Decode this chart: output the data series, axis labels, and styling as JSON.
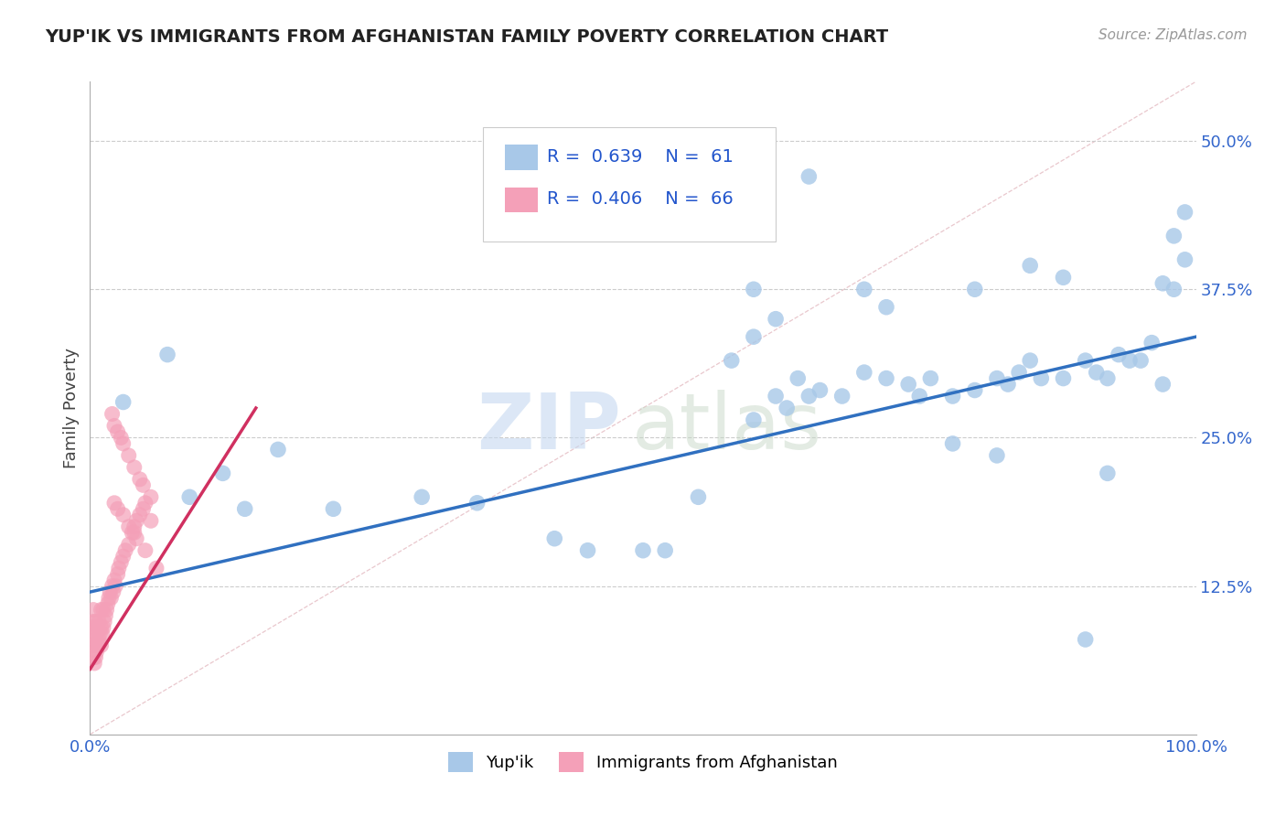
{
  "title": "YUP'IK VS IMMIGRANTS FROM AFGHANISTAN FAMILY POVERTY CORRELATION CHART",
  "source": "Source: ZipAtlas.com",
  "ylabel": "Family Poverty",
  "legend_label_1": "Yup'ik",
  "legend_label_2": "Immigrants from Afghanistan",
  "r1": 0.639,
  "n1": 61,
  "r2": 0.406,
  "n2": 66,
  "color1": "#a8c8e8",
  "color2": "#f4a0b8",
  "line_color1": "#3070c0",
  "line_color2": "#d03060",
  "xlim": [
    0.0,
    1.0
  ],
  "ylim": [
    0.0,
    0.55
  ],
  "ytick_labels": [
    "12.5%",
    "25.0%",
    "37.5%",
    "50.0%"
  ],
  "ytick_values": [
    0.125,
    0.25,
    0.375,
    0.5
  ],
  "blue_line_x0": 0.0,
  "blue_line_y0": 0.12,
  "blue_line_x1": 1.0,
  "blue_line_y1": 0.335,
  "pink_line_x0": 0.0,
  "pink_line_y0": 0.055,
  "pink_line_x1": 0.15,
  "pink_line_y1": 0.275,
  "blue_dots": [
    [
      0.03,
      0.28
    ],
    [
      0.07,
      0.32
    ],
    [
      0.09,
      0.2
    ],
    [
      0.12,
      0.22
    ],
    [
      0.14,
      0.19
    ],
    [
      0.17,
      0.24
    ],
    [
      0.22,
      0.19
    ],
    [
      0.3,
      0.2
    ],
    [
      0.35,
      0.195
    ],
    [
      0.42,
      0.165
    ],
    [
      0.45,
      0.155
    ],
    [
      0.5,
      0.155
    ],
    [
      0.52,
      0.155
    ],
    [
      0.55,
      0.2
    ],
    [
      0.58,
      0.315
    ],
    [
      0.6,
      0.335
    ],
    [
      0.6,
      0.265
    ],
    [
      0.62,
      0.285
    ],
    [
      0.63,
      0.275
    ],
    [
      0.64,
      0.3
    ],
    [
      0.65,
      0.285
    ],
    [
      0.66,
      0.29
    ],
    [
      0.68,
      0.285
    ],
    [
      0.7,
      0.305
    ],
    [
      0.72,
      0.3
    ],
    [
      0.74,
      0.295
    ],
    [
      0.75,
      0.285
    ],
    [
      0.76,
      0.3
    ],
    [
      0.78,
      0.285
    ],
    [
      0.8,
      0.29
    ],
    [
      0.82,
      0.3
    ],
    [
      0.83,
      0.295
    ],
    [
      0.84,
      0.305
    ],
    [
      0.85,
      0.315
    ],
    [
      0.86,
      0.3
    ],
    [
      0.88,
      0.3
    ],
    [
      0.9,
      0.315
    ],
    [
      0.91,
      0.305
    ],
    [
      0.92,
      0.3
    ],
    [
      0.93,
      0.32
    ],
    [
      0.94,
      0.315
    ],
    [
      0.95,
      0.315
    ],
    [
      0.96,
      0.33
    ],
    [
      0.97,
      0.38
    ],
    [
      0.97,
      0.295
    ],
    [
      0.98,
      0.42
    ],
    [
      0.98,
      0.375
    ],
    [
      0.99,
      0.44
    ],
    [
      0.99,
      0.4
    ],
    [
      0.65,
      0.47
    ],
    [
      0.7,
      0.375
    ],
    [
      0.8,
      0.375
    ],
    [
      0.85,
      0.395
    ],
    [
      0.88,
      0.385
    ],
    [
      0.9,
      0.08
    ],
    [
      0.92,
      0.22
    ],
    [
      0.6,
      0.375
    ],
    [
      0.62,
      0.35
    ],
    [
      0.72,
      0.36
    ],
    [
      0.78,
      0.245
    ],
    [
      0.82,
      0.235
    ]
  ],
  "pink_dots": [
    [
      0.003,
      0.065
    ],
    [
      0.003,
      0.075
    ],
    [
      0.003,
      0.085
    ],
    [
      0.003,
      0.095
    ],
    [
      0.003,
      0.105
    ],
    [
      0.004,
      0.06
    ],
    [
      0.004,
      0.075
    ],
    [
      0.004,
      0.09
    ],
    [
      0.005,
      0.065
    ],
    [
      0.005,
      0.08
    ],
    [
      0.005,
      0.095
    ],
    [
      0.006,
      0.07
    ],
    [
      0.006,
      0.085
    ],
    [
      0.007,
      0.075
    ],
    [
      0.007,
      0.09
    ],
    [
      0.008,
      0.08
    ],
    [
      0.008,
      0.095
    ],
    [
      0.009,
      0.085
    ],
    [
      0.01,
      0.075
    ],
    [
      0.01,
      0.09
    ],
    [
      0.01,
      0.105
    ],
    [
      0.011,
      0.085
    ],
    [
      0.012,
      0.09
    ],
    [
      0.012,
      0.105
    ],
    [
      0.013,
      0.095
    ],
    [
      0.014,
      0.1
    ],
    [
      0.015,
      0.105
    ],
    [
      0.016,
      0.11
    ],
    [
      0.017,
      0.115
    ],
    [
      0.018,
      0.12
    ],
    [
      0.019,
      0.115
    ],
    [
      0.02,
      0.125
    ],
    [
      0.021,
      0.12
    ],
    [
      0.022,
      0.13
    ],
    [
      0.023,
      0.125
    ],
    [
      0.025,
      0.135
    ],
    [
      0.026,
      0.14
    ],
    [
      0.028,
      0.145
    ],
    [
      0.03,
      0.15
    ],
    [
      0.032,
      0.155
    ],
    [
      0.035,
      0.16
    ],
    [
      0.038,
      0.17
    ],
    [
      0.04,
      0.175
    ],
    [
      0.042,
      0.18
    ],
    [
      0.045,
      0.185
    ],
    [
      0.048,
      0.19
    ],
    [
      0.05,
      0.195
    ],
    [
      0.055,
      0.2
    ],
    [
      0.02,
      0.27
    ],
    [
      0.022,
      0.26
    ],
    [
      0.025,
      0.255
    ],
    [
      0.028,
      0.25
    ],
    [
      0.03,
      0.245
    ],
    [
      0.035,
      0.235
    ],
    [
      0.04,
      0.225
    ],
    [
      0.045,
      0.215
    ],
    [
      0.048,
      0.21
    ],
    [
      0.055,
      0.18
    ],
    [
      0.022,
      0.195
    ],
    [
      0.025,
      0.19
    ],
    [
      0.03,
      0.185
    ],
    [
      0.035,
      0.175
    ],
    [
      0.04,
      0.17
    ],
    [
      0.042,
      0.165
    ],
    [
      0.05,
      0.155
    ],
    [
      0.06,
      0.14
    ]
  ]
}
